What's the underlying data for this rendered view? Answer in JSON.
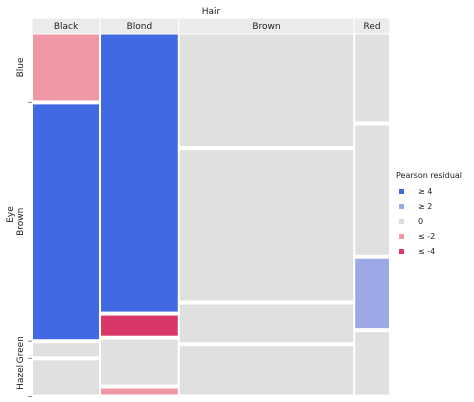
{
  "chart_data": {
    "type": "mosaic",
    "title": "",
    "x_variable": "Hair",
    "y_variable": "Eye",
    "hair_categories": [
      "Black",
      "Blond",
      "Brown",
      "Red"
    ],
    "eye_categories": [
      "Blue",
      "Brown",
      "Green",
      "Hazel"
    ],
    "hair_widths": [
      0.19,
      0.22,
      0.49,
      0.1
    ],
    "cells": [
      {
        "hair": "Black",
        "eye": "Blue",
        "fraction": 0.19,
        "residual_class": "<= -2"
      },
      {
        "hair": "Black",
        "eye": "Brown",
        "fraction": 0.67,
        "residual_class": ">= 4"
      },
      {
        "hair": "Black",
        "eye": "Green",
        "fraction": 0.04,
        "residual_class": "0"
      },
      {
        "hair": "Black",
        "eye": "Hazel",
        "fraction": 0.1,
        "residual_class": "0"
      },
      {
        "hair": "Blond",
        "eye": "Blue",
        "fraction": 0.79,
        "residual_class": ">= 4"
      },
      {
        "hair": "Blond",
        "eye": "Brown",
        "fraction": 0.06,
        "residual_class": "<= -4"
      },
      {
        "hair": "Blond",
        "eye": "Green",
        "fraction": 0.13,
        "residual_class": "0"
      },
      {
        "hair": "Blond",
        "eye": "Hazel",
        "fraction": 0.02,
        "residual_class": "<= -2"
      },
      {
        "hair": "Brown",
        "eye": "Blue",
        "fraction": 0.32,
        "residual_class": "0"
      },
      {
        "hair": "Brown",
        "eye": "Brown",
        "fraction": 0.43,
        "residual_class": "0"
      },
      {
        "hair": "Brown",
        "eye": "Green",
        "fraction": 0.11,
        "residual_class": "0"
      },
      {
        "hair": "Brown",
        "eye": "Hazel",
        "fraction": 0.14,
        "residual_class": "0"
      },
      {
        "hair": "Red",
        "eye": "Blue",
        "fraction": 0.25,
        "residual_class": "0"
      },
      {
        "hair": "Red",
        "eye": "Brown",
        "fraction": 0.37,
        "residual_class": "0"
      },
      {
        "hair": "Red",
        "eye": "Green",
        "fraction": 0.2,
        "residual_class": ">= 2"
      },
      {
        "hair": "Red",
        "eye": "Hazel",
        "fraction": 0.18,
        "residual_class": "0"
      }
    ],
    "legend": {
      "title": "Pearson residual",
      "placement": "right",
      "entries": [
        {
          "label": "≥ 4",
          "class": ">= 4",
          "color": "#4169E1"
        },
        {
          "label": "≥ 2",
          "class": ">= 2",
          "color": "#9DA8E6"
        },
        {
          "label": "0",
          "class": "0",
          "color": "#E3D9E6"
        },
        {
          "label": "≤ -2",
          "class": "<= -2",
          "color": "#EE98A6"
        },
        {
          "label": "≤ -4",
          "class": "<= -4",
          "color": "#D9376A"
        }
      ]
    },
    "cell_color_neutral": "#E0E0E0",
    "cell_border_color": "#FFFFFF"
  }
}
